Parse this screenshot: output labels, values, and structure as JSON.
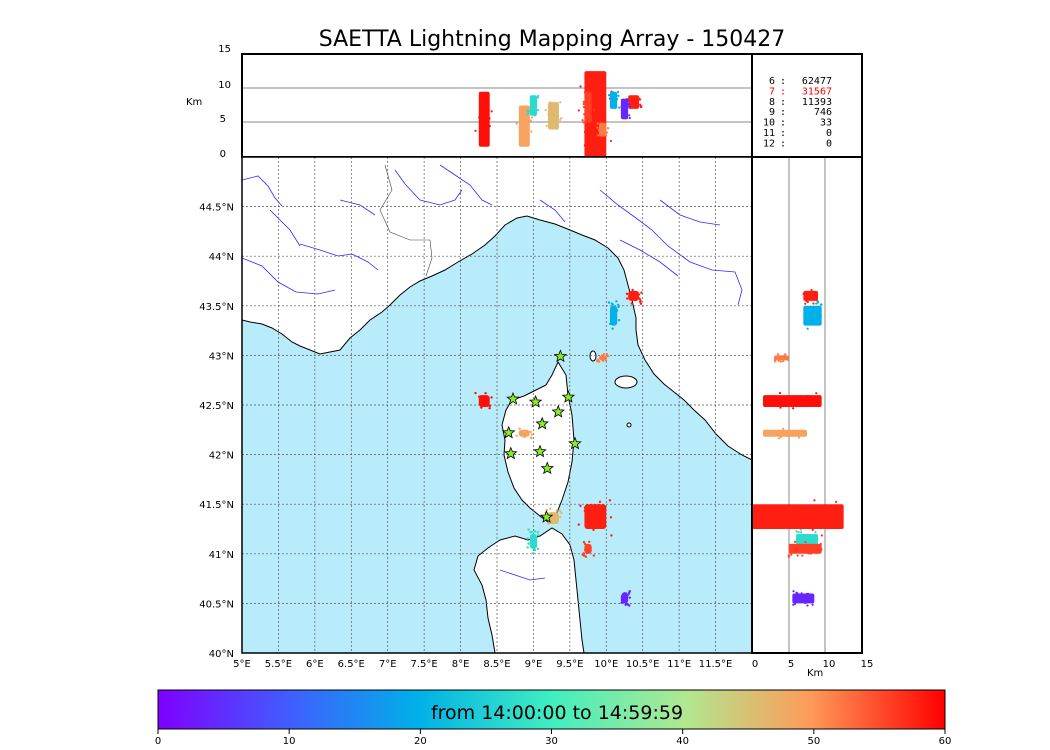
{
  "title": "SAETTA Lightning Mapping Array - 150427",
  "alt_unit_label": "Km",
  "x_alt_unit_label": "Km",
  "alt_ticks": [
    "15",
    "10",
    "5",
    "0"
  ],
  "alt_x_ticks": [
    "0",
    "5",
    "10",
    "15"
  ],
  "lon_ticks": [
    "5°E",
    "5.5°E",
    "6°E",
    "6.5°E",
    "7°E",
    "7.5°E",
    "8°E",
    "8.5°E",
    "9°E",
    "9.5°E",
    "10°E",
    "10.5°E",
    "11°E",
    "11.5°E"
  ],
  "lat_ticks": [
    "44.5°N",
    "44°N",
    "43.5°N",
    "43°N",
    "42.5°N",
    "42°N",
    "41.5°N",
    "41°N",
    "40.5°N",
    "40°N"
  ],
  "station_counts": [
    {
      "stations": "6",
      "sep": ":",
      "count": "62477",
      "highlight": false
    },
    {
      "stations": "7",
      "sep": ":",
      "count": "31567",
      "highlight": true
    },
    {
      "stations": "8",
      "sep": ":",
      "count": "11393",
      "highlight": false
    },
    {
      "stations": "9",
      "sep": ":",
      "count": "746",
      "highlight": false
    },
    {
      "stations": "10",
      "sep": ":",
      "count": "33",
      "highlight": false
    },
    {
      "stations": "11",
      "sep": ":",
      "count": "0",
      "highlight": false
    },
    {
      "stations": "12",
      "sep": ":",
      "count": "0",
      "highlight": false
    }
  ],
  "colorbar": {
    "label": "from 14:00:00 to 14:59:59",
    "ticks": [
      "0",
      "10",
      "20",
      "30",
      "40",
      "50",
      "60"
    ],
    "min": 0,
    "max": 60
  },
  "colors": {
    "sea": "#b9ecfb",
    "land": "#ffffff",
    "coast": "#000000",
    "river": "#2b2bff",
    "grid": "#555555",
    "station_marker": "#88ee22",
    "highlight_text": "#ff0000"
  },
  "map_extent": {
    "lon_min": 5,
    "lon_max": 12,
    "lat_min": 40,
    "lat_max": 45
  },
  "altitude_range_km": [
    0,
    15
  ],
  "station_markers": [
    {
      "lon": 9.37,
      "lat": 42.99
    },
    {
      "lon": 8.72,
      "lat": 42.56
    },
    {
      "lon": 9.03,
      "lat": 42.53
    },
    {
      "lon": 9.48,
      "lat": 42.58
    },
    {
      "lon": 9.34,
      "lat": 42.43
    },
    {
      "lon": 9.12,
      "lat": 42.31
    },
    {
      "lon": 8.66,
      "lat": 42.22
    },
    {
      "lon": 9.57,
      "lat": 42.11
    },
    {
      "lon": 8.69,
      "lat": 42.01
    },
    {
      "lon": 9.09,
      "lat": 42.03
    },
    {
      "lon": 9.19,
      "lat": 41.86
    },
    {
      "lon": 9.18,
      "lat": 41.37
    }
  ],
  "lightning_clusters": [
    {
      "lon": [
        8.25,
        8.4
      ],
      "lat": [
        42.48,
        42.6
      ],
      "alt": [
        1.5,
        9.5
      ],
      "t": 59
    },
    {
      "lon": [
        8.8,
        8.95
      ],
      "lat": [
        42.18,
        42.25
      ],
      "alt": [
        1.5,
        7.5
      ],
      "t": 49
    },
    {
      "lon": [
        8.95,
        9.05
      ],
      "lat": [
        41.05,
        41.2
      ],
      "alt": [
        6.0,
        9.0
      ],
      "t": 27
    },
    {
      "lon": [
        9.2,
        9.35
      ],
      "lat": [
        41.3,
        41.42
      ],
      "alt": [
        4.0,
        8.0
      ],
      "t": 46
    },
    {
      "lon": [
        9.7,
        10.0
      ],
      "lat": [
        41.25,
        41.5
      ],
      "alt": [
        0.0,
        12.5
      ],
      "t": 58
    },
    {
      "lon": [
        9.7,
        9.8
      ],
      "lat": [
        41.0,
        41.1
      ],
      "alt": [
        5.0,
        9.5
      ],
      "t": 56
    },
    {
      "lon": [
        10.05,
        10.15
      ],
      "lat": [
        43.3,
        43.5
      ],
      "alt": [
        7.0,
        9.5
      ],
      "t": 20
    },
    {
      "lon": [
        10.3,
        10.45
      ],
      "lat": [
        43.55,
        43.65
      ],
      "alt": [
        7.0,
        9.0
      ],
      "t": 58
    },
    {
      "lon": [
        10.2,
        10.3
      ],
      "lat": [
        40.5,
        40.6
      ],
      "alt": [
        5.5,
        8.5
      ],
      "t": 4
    },
    {
      "lon": [
        9.9,
        10.0
      ],
      "lat": [
        42.95,
        43.0
      ],
      "alt": [
        3.0,
        5.0
      ],
      "t": 52
    }
  ]
}
